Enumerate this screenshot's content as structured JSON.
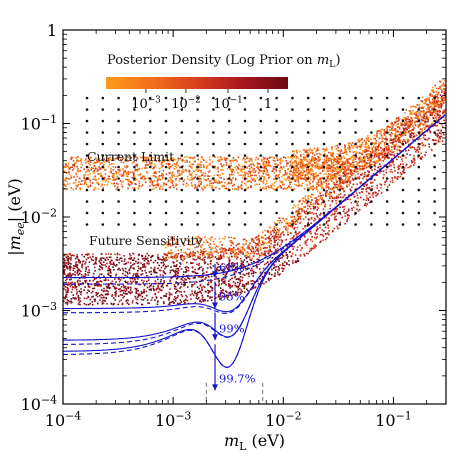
{
  "chart_data": {
    "type": "scatter",
    "title": "",
    "xlabel_main": "m",
    "xlabel_sub": "L",
    "xlabel_unit": " (eV)",
    "ylabel_main": "|m",
    "ylabel_sub": "ee",
    "ylabel_close": "|",
    "ylabel_unit": " (eV)",
    "x_scale": "log",
    "y_scale": "log",
    "xlim": [
      0.0001,
      0.3
    ],
    "ylim": [
      0.0001,
      1
    ],
    "x_ticks": [
      {
        "value": 0.0001,
        "base": "10",
        "exp": "−4"
      },
      {
        "value": 0.001,
        "base": "10",
        "exp": "−3"
      },
      {
        "value": 0.01,
        "base": "10",
        "exp": "−2"
      },
      {
        "value": 0.1,
        "base": "10",
        "exp": "−1"
      }
    ],
    "y_ticks": [
      {
        "value": 0.0001,
        "base": "10",
        "exp": "−4"
      },
      {
        "value": 0.001,
        "base": "10",
        "exp": "−3"
      },
      {
        "value": 0.01,
        "base": "10",
        "exp": "−2"
      },
      {
        "value": 0.1,
        "base": "10",
        "exp": "−1"
      },
      {
        "value": 1,
        "base": "1",
        "exp": ""
      }
    ],
    "colorbar": {
      "title_pre": "Posterior Density (Log Prior on ",
      "title_var": "m",
      "title_sub": "L",
      "title_post": ")",
      "colors": [
        "#ff9a1e",
        "#f2701a",
        "#d8401d",
        "#a81620",
        "#6b0a14"
      ],
      "ticks": [
        {
          "base": "10",
          "exp": "−3"
        },
        {
          "base": "10",
          "exp": "−2"
        },
        {
          "base": "10",
          "exp": "−1"
        },
        {
          "base": "1",
          "exp": ""
        }
      ]
    },
    "current_limit": {
      "label": "Current Limit",
      "y_low": 0.02,
      "y_high": 0.045
    },
    "future_sensitivity": {
      "label": "Future Sensitivity",
      "y_low": 0.002,
      "y_high": 0.003
    },
    "credible_levels": [
      {
        "label": "68%",
        "value": 0.00225
      },
      {
        "label": "95%",
        "value": 0.00105
      },
      {
        "label": "99%",
        "value": 0.00048
      },
      {
        "label": "99.7%",
        "value": 0.00014
      }
    ],
    "marker_x": 0.0024,
    "dashed_x": [
      0.002,
      0.0065
    ],
    "colors": {
      "accent": "#1414d2",
      "dashed": "#707070",
      "limit_band": "#f06e1a",
      "sens_band": "#a01818"
    }
  }
}
